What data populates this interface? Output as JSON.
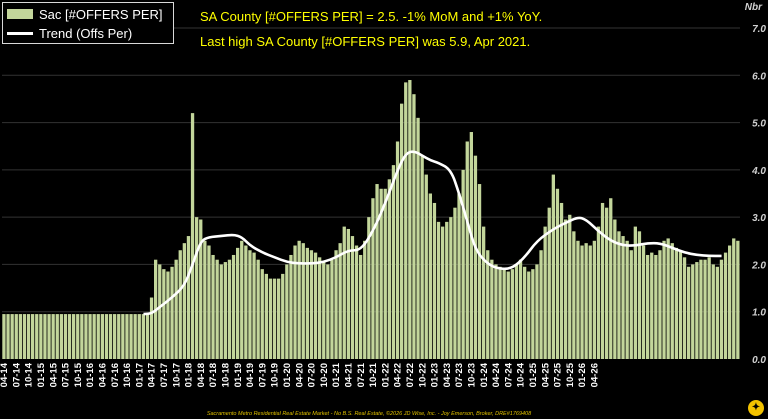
{
  "legend": {
    "bars_label": "Sac [#OFFERS PER]",
    "line_label": "Trend (Offs Per)"
  },
  "annotations": {
    "line1": "SA County [#OFFERS PER] = 2.5. -1% MoM and +1% YoY.",
    "line2": "Last high SA County [#OFFERS PER] was 5.9, Apr 2021."
  },
  "footer": "Sacramento Metro Residential Real Estate Market - No B.S. Real Estate, ©2026 JD Wise, Inc. - Joy Emerson, Broker, DRE#1769408",
  "logo_glyph": "✦",
  "colors": {
    "bars": "#c3d69b",
    "trend": "#ffffff",
    "annotation": "#ffff00",
    "grid": "#333333"
  },
  "chart_data": {
    "type": "bar",
    "ylabel": "Nbr",
    "ylim": [
      0,
      7
    ],
    "yticks": [
      "0.0",
      "1.0",
      "2.0",
      "3.0",
      "4.0",
      "5.0",
      "6.0",
      "7.0"
    ],
    "grid": true,
    "legend_position": "top-left",
    "x_labels": [
      "04-14",
      "07-14",
      "10-14",
      "01-15",
      "04-15",
      "07-15",
      "10-15",
      "01-16",
      "04-16",
      "07-16",
      "10-16",
      "01-17",
      "04-17",
      "07-17",
      "10-17",
      "01-18",
      "04-18",
      "07-18",
      "10-18",
      "01-19",
      "04-19",
      "07-19",
      "10-19",
      "01-20",
      "04-20",
      "07-20",
      "10-20",
      "01-21",
      "04-21",
      "07-21",
      "10-21",
      "01-22",
      "04-22",
      "07-22",
      "10-22",
      "01-23",
      "04-23",
      "07-23",
      "10-23",
      "01-24",
      "04-24",
      "07-24",
      "10-24",
      "01-25",
      "04-25",
      "07-25",
      "10-25",
      "01-26",
      "04-26"
    ],
    "x_start": "2014-04",
    "x_end": "2026-04",
    "series": [
      {
        "name": "Sac [#OFFERS PER]",
        "kind": "bar",
        "values": [
          0.95,
          0.95,
          0.95,
          0.95,
          0.95,
          0.95,
          0.95,
          0.95,
          0.95,
          0.95,
          0.95,
          0.95,
          0.95,
          0.95,
          0.95,
          0.95,
          0.95,
          0.95,
          0.95,
          0.95,
          0.95,
          0.95,
          0.95,
          0.95,
          0.95,
          0.95,
          0.95,
          0.95,
          0.95,
          0.95,
          0.95,
          0.95,
          0.95,
          0.95,
          0.95,
          0.95,
          1.3,
          2.1,
          2.0,
          1.9,
          1.85,
          1.95,
          2.1,
          2.3,
          2.45,
          2.6,
          5.2,
          3.0,
          2.95,
          2.5,
          2.4,
          2.2,
          2.1,
          2.0,
          2.05,
          2.1,
          2.2,
          2.35,
          2.5,
          2.4,
          2.3,
          2.25,
          2.1,
          1.9,
          1.8,
          1.7,
          1.7,
          1.7,
          1.8,
          2.0,
          2.2,
          2.4,
          2.5,
          2.45,
          2.35,
          2.3,
          2.25,
          2.15,
          2.05,
          2.0,
          2.1,
          2.3,
          2.45,
          2.8,
          2.75,
          2.6,
          2.4,
          2.2,
          2.5,
          3.0,
          3.4,
          3.7,
          3.6,
          3.6,
          3.8,
          4.1,
          4.6,
          5.4,
          5.85,
          5.9,
          5.6,
          5.1,
          4.3,
          3.9,
          3.5,
          3.3,
          2.9,
          2.8,
          2.9,
          3.0,
          3.2,
          3.5,
          4.0,
          4.6,
          4.8,
          4.3,
          3.7,
          2.8,
          2.3,
          2.1,
          2.0,
          1.95,
          1.9,
          1.85,
          1.9,
          2.0,
          2.1,
          1.95,
          1.85,
          1.9,
          2.0,
          2.3,
          2.8,
          3.2,
          3.9,
          3.6,
          3.3,
          2.95,
          3.05,
          2.7,
          2.5,
          2.4,
          2.45,
          2.4,
          2.5,
          2.8,
          3.3,
          3.2,
          3.4,
          2.95,
          2.7,
          2.6,
          2.5,
          2.3,
          2.8,
          2.7,
          2.4,
          2.2,
          2.25,
          2.2,
          2.3,
          2.5,
          2.55,
          2.45,
          2.35,
          2.3,
          2.15,
          1.95,
          2.0,
          2.05,
          2.1,
          2.1,
          2.15,
          2.0,
          1.95,
          2.1,
          2.25,
          2.4,
          2.55,
          2.5
        ]
      },
      {
        "name": "Trend (Offs Per)",
        "kind": "line",
        "points": [
          [
            34,
            0.95
          ],
          [
            36,
            0.96
          ],
          [
            38,
            1.1
          ],
          [
            41,
            1.3
          ],
          [
            44,
            1.55
          ],
          [
            46,
            2.0
          ],
          [
            48,
            2.5
          ],
          [
            50,
            2.58
          ],
          [
            53,
            2.6
          ],
          [
            56,
            2.63
          ],
          [
            58,
            2.58
          ],
          [
            60,
            2.4
          ],
          [
            63,
            2.25
          ],
          [
            66,
            2.15
          ],
          [
            69,
            2.05
          ],
          [
            72,
            2.02
          ],
          [
            75,
            2.02
          ],
          [
            78,
            2.05
          ],
          [
            81,
            2.15
          ],
          [
            84,
            2.3
          ],
          [
            87,
            2.3
          ],
          [
            90,
            2.7
          ],
          [
            93,
            3.3
          ],
          [
            96,
            4.0
          ],
          [
            98,
            4.35
          ],
          [
            100,
            4.4
          ],
          [
            102,
            4.3
          ],
          [
            104,
            4.2
          ],
          [
            106,
            4.15
          ],
          [
            109,
            4.0
          ],
          [
            111,
            3.5
          ],
          [
            113,
            2.9
          ],
          [
            115,
            2.3
          ],
          [
            118,
            2.0
          ],
          [
            121,
            1.9
          ],
          [
            124,
            1.92
          ],
          [
            127,
            2.15
          ],
          [
            130,
            2.5
          ],
          [
            134,
            2.75
          ],
          [
            137,
            2.88
          ],
          [
            140,
            3.0
          ],
          [
            142,
            2.95
          ],
          [
            145,
            2.7
          ],
          [
            148,
            2.5
          ],
          [
            151,
            2.4
          ],
          [
            154,
            2.4
          ],
          [
            157,
            2.45
          ],
          [
            160,
            2.45
          ],
          [
            163,
            2.35
          ],
          [
            166,
            2.25
          ],
          [
            169,
            2.2
          ],
          [
            172,
            2.18
          ],
          [
            175,
            2.18
          ]
        ]
      }
    ]
  }
}
